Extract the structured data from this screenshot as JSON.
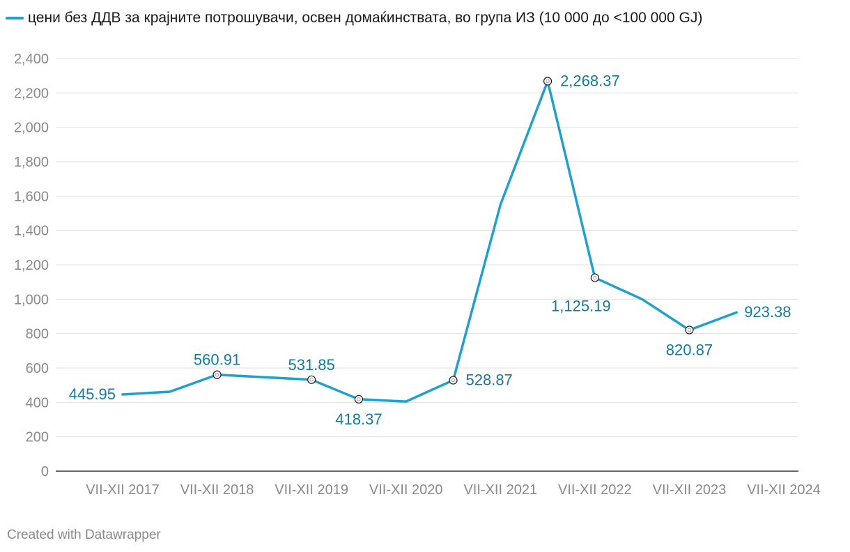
{
  "chart_data": {
    "type": "line",
    "series": [
      {
        "name": "цени без ДДВ за крајните потрошувачи, освен домаќинствата, во група ИЗ (10 000 до <100 000 GJ)",
        "color": "#1fa0cf",
        "points": [
          {
            "x": 0,
            "y": 445.95,
            "label": "445.95",
            "marker": false
          },
          {
            "x": 0.5,
            "y": 462,
            "label": null,
            "marker": false
          },
          {
            "x": 1,
            "y": 560.91,
            "label": "560.91",
            "marker": true
          },
          {
            "x": 2,
            "y": 531.85,
            "label": "531.85",
            "marker": true
          },
          {
            "x": 2.5,
            "y": 418.37,
            "label": "418.37",
            "marker": true
          },
          {
            "x": 3,
            "y": 405,
            "label": null,
            "marker": false
          },
          {
            "x": 3.5,
            "y": 528.87,
            "label": "528.87",
            "marker": true
          },
          {
            "x": 4,
            "y": 1550,
            "label": null,
            "marker": false
          },
          {
            "x": 4.5,
            "y": 2268.37,
            "label": "2,268.37",
            "marker": true
          },
          {
            "x": 5,
            "y": 1125.19,
            "label": "1,125.19",
            "marker": true
          },
          {
            "x": 5.5,
            "y": 1000,
            "label": null,
            "marker": false
          },
          {
            "x": 6,
            "y": 820.87,
            "label": "820.87",
            "marker": true
          },
          {
            "x": 6.5,
            "y": 923.38,
            "label": "923.38",
            "marker": false
          }
        ]
      }
    ],
    "categories": [
      "VII-XII 2017",
      "VII-XII 2018",
      "VII-XII 2019",
      "VII-XII 2020",
      "VII-XII 2021",
      "VII-XII 2022",
      "VII-XII 2023",
      "VII-XII 2024"
    ],
    "category_x": [
      0,
      1,
      2,
      3,
      4,
      5,
      6,
      7
    ],
    "xlim": [
      0,
      7
    ],
    "yticks": [
      0,
      200,
      400,
      600,
      800,
      1000,
      1200,
      1400,
      1600,
      1800,
      2000,
      2200,
      2400
    ],
    "ytick_labels": [
      "0",
      "200",
      "400",
      "600",
      "800",
      "1,000",
      "1,200",
      "1,400",
      "1,600",
      "1,800",
      "2,000",
      "2,200",
      "2,400"
    ],
    "ylim": [
      0,
      2400
    ],
    "grid": true,
    "legend_position": "top-left",
    "title": "",
    "xlabel": "",
    "ylabel": ""
  },
  "legend": {
    "label": "цени без ДДВ за крајните потрошувачи, освен домаќинствата, во група ИЗ (10 000 до <100 000 GJ)",
    "color": "#1fa0cf"
  },
  "footer": {
    "credit": "Created with Datawrapper"
  },
  "colors": {
    "line": "#1fa0cf",
    "label": "#157a9e",
    "grid": "#e0e0e0",
    "axis_text": "#8a8a8a"
  }
}
